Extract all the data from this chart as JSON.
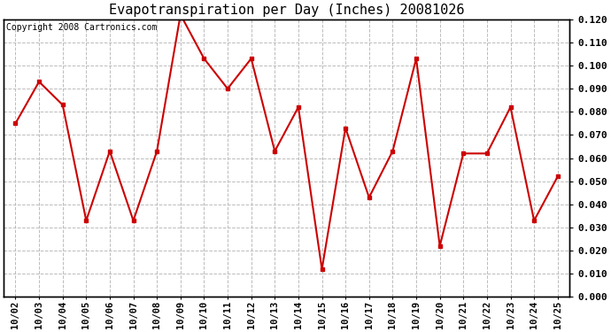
{
  "title": "Evapotranspiration per Day (Inches) 20081026",
  "copyright_text": "Copyright 2008 Cartronics.com",
  "x_labels": [
    "10/02",
    "10/03",
    "10/04",
    "10/05",
    "10/06",
    "10/07",
    "10/08",
    "10/09",
    "10/10",
    "10/11",
    "10/12",
    "10/13",
    "10/14",
    "10/15",
    "10/16",
    "10/17",
    "10/18",
    "10/19",
    "10/20",
    "10/21",
    "10/22",
    "10/23",
    "10/24",
    "10/25"
  ],
  "y_values": [
    0.075,
    0.093,
    0.083,
    0.033,
    0.063,
    0.033,
    0.063,
    0.122,
    0.103,
    0.09,
    0.103,
    0.063,
    0.082,
    0.012,
    0.073,
    0.043,
    0.063,
    0.103,
    0.022,
    0.062,
    0.062,
    0.082,
    0.033,
    0.052
  ],
  "line_color": "#cc0000",
  "marker": "s",
  "marker_size": 3,
  "ylim_min": 0.0,
  "ylim_max": 0.12,
  "ytick_step": 0.01,
  "grid_color": "#bbbbbb",
  "grid_style": "--",
  "bg_color": "#ffffff",
  "title_fontsize": 11,
  "copyright_fontsize": 7,
  "tick_fontsize": 7.5,
  "ylabel_right_fontsize": 8
}
